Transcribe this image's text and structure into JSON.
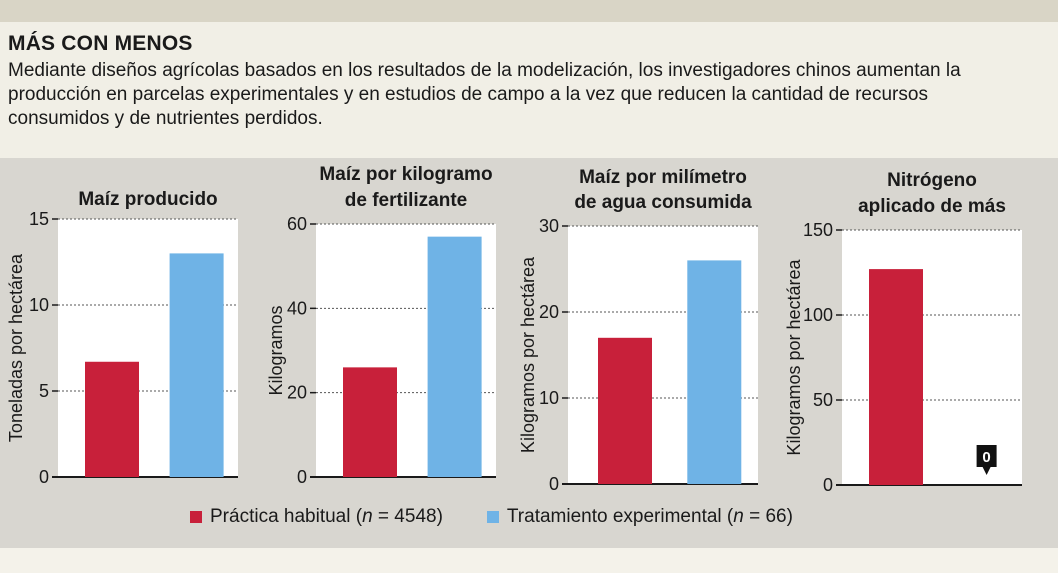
{
  "figure": {
    "title": "MÁS CON MENOS",
    "subtitle": "Mediante diseños agrícolas basados en los resultados de la modelización, los investigadores chinos aumentan la producción en parcelas experimentales y en estudios de campo a la vez que reducen la cantidad de recursos consumidos y de nutrientes perdidos."
  },
  "colors": {
    "habitual": "#c8203a",
    "experimental": "#6fb3e6",
    "plot_bg": "#ffffff",
    "axis": "#1a1a1a",
    "grid": "#555555",
    "marker_bg": "#111111"
  },
  "legend": {
    "habitual": {
      "label_pre": "Práctica habitual (",
      "label_n": "n",
      "label_post": " = 4548)"
    },
    "experimental": {
      "label_pre": "Tratamiento experimental (",
      "label_n": "n",
      "label_post": " = 66)"
    }
  },
  "chart_data": [
    {
      "type": "bar",
      "title": [
        "Maíz producido"
      ],
      "ylabel": "Toneladas por hectárea",
      "ylim": [
        0,
        15
      ],
      "yticks": [
        0,
        5,
        10,
        15
      ],
      "categories": [
        "Práctica habitual",
        "Tratamiento experimental"
      ],
      "values": [
        6.7,
        13.0
      ]
    },
    {
      "type": "bar",
      "title": [
        "Maíz por kilogramo",
        "de fertilizante"
      ],
      "ylabel": "Kilogramos",
      "ylim": [
        0,
        60
      ],
      "yticks": [
        0,
        20,
        40,
        60
      ],
      "categories": [
        "Práctica habitual",
        "Tratamiento experimental"
      ],
      "values": [
        26,
        57
      ]
    },
    {
      "type": "bar",
      "title": [
        "Maíz por milímetro",
        "de agua consumida"
      ],
      "ylabel": "Kilogramos por hectárea",
      "ylim": [
        0,
        30
      ],
      "yticks": [
        0,
        10,
        20,
        30
      ],
      "categories": [
        "Práctica habitual",
        "Tratamiento experimental"
      ],
      "values": [
        17,
        26
      ]
    },
    {
      "type": "bar",
      "title": [
        "Nitrógeno",
        "aplicado de más"
      ],
      "ylabel": "Kilogramos por hectárea",
      "ylim": [
        0,
        150
      ],
      "yticks": [
        0,
        50,
        100,
        150
      ],
      "categories": [
        "Práctica habitual",
        "Tratamiento experimental"
      ],
      "values": [
        127,
        0
      ],
      "annotation": "0"
    }
  ]
}
